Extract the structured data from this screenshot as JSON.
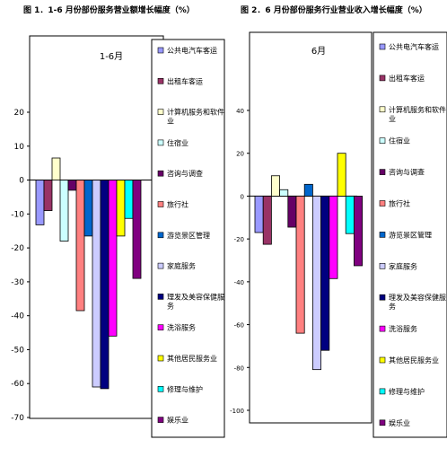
{
  "figure_titles": [
    "图 1．1-6 月份部份服务营业额增长幅度（%）",
    "图 2．6 月份部份服务行业营业收入增长幅度（%）"
  ],
  "colors": [
    "#9999ff",
    "#993366",
    "#ffffcc",
    "#ccffff",
    "#660066",
    "#ff8080",
    "#0066cc",
    "#ccccff",
    "#000080",
    "#ff00ff",
    "#ffff00",
    "#00ffff",
    "#800080"
  ],
  "chart_data": [
    {
      "type": "bar",
      "title": "1-6月",
      "ylim": [
        -70,
        20
      ],
      "yticks": [
        20,
        10,
        0,
        -10,
        -20,
        -30,
        -40,
        -50,
        -60,
        -70
      ],
      "legend_position": "right",
      "series": [
        {
          "name": "公共电汽车客运",
          "values": [
            -13.2
          ]
        },
        {
          "name": "出租车客运",
          "values": [
            -9
          ]
        },
        {
          "name": "计算机服务和软件业",
          "values": [
            6.5
          ]
        },
        {
          "name": "住宿业",
          "values": [
            -18
          ]
        },
        {
          "name": "咨询与调查",
          "values": [
            -3
          ]
        },
        {
          "name": "旅行社",
          "values": [
            -38.5
          ]
        },
        {
          "name": "游览景区管理",
          "values": [
            -16.5
          ]
        },
        {
          "name": "家庭服务",
          "values": [
            -61
          ]
        },
        {
          "name": "理发及美容保健服务",
          "values": [
            -61.5
          ]
        },
        {
          "name": "洗浴服务",
          "values": [
            -46
          ]
        },
        {
          "name": "其他居民服务业",
          "values": [
            -16.5
          ]
        },
        {
          "name": "修理与维护",
          "values": [
            -11.3
          ]
        },
        {
          "name": "娱乐业",
          "values": [
            -29
          ]
        }
      ]
    },
    {
      "type": "bar",
      "title": "6月",
      "ylim": [
        -100,
        40
      ],
      "yticks": [
        40,
        20,
        0,
        -20,
        -40,
        -60,
        -80,
        -100
      ],
      "legend_position": "right",
      "series": [
        {
          "name": "公共电汽车客运",
          "values": [
            -17
          ]
        },
        {
          "name": "出租车客运",
          "values": [
            -22.5
          ]
        },
        {
          "name": "计算机服务和软件业",
          "values": [
            9.5
          ]
        },
        {
          "name": "住宿业",
          "values": [
            3
          ]
        },
        {
          "name": "咨询与调查",
          "values": [
            -14.5
          ]
        },
        {
          "name": "旅行社",
          "values": [
            -64
          ]
        },
        {
          "name": "游览景区管理",
          "values": [
            5.5
          ]
        },
        {
          "name": "家庭服务",
          "values": [
            -81
          ]
        },
        {
          "name": "理发及美容保健服务",
          "values": [
            -72
          ]
        },
        {
          "name": "洗浴服务",
          "values": [
            -38.5
          ]
        },
        {
          "name": "其他居民服务业",
          "values": [
            20
          ]
        },
        {
          "name": "修理与维护",
          "values": [
            -17.5
          ]
        },
        {
          "name": "娱乐业",
          "values": [
            -32.5
          ]
        }
      ]
    }
  ]
}
